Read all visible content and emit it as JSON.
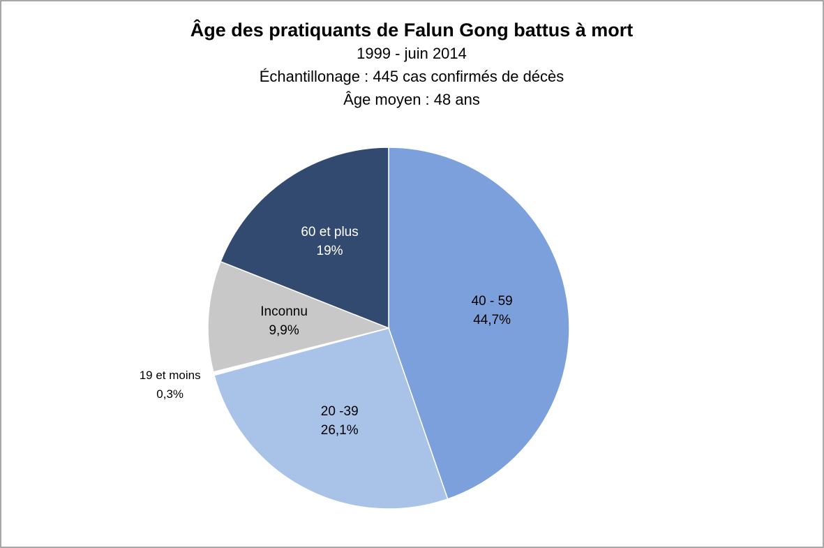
{
  "chart_data": {
    "type": "pie",
    "title": "Âge des pratiquants de Falun Gong battus à mort",
    "subtitle": [
      "1999 - juin 2014",
      "Échantillonage : 445 cas confirmés de décès",
      "Âge moyen : 48 ans"
    ],
    "categories": [
      "40 - 59",
      "20 -39",
      "19 et moins",
      "Inconnu",
      "60 et plus"
    ],
    "values": [
      44.7,
      26.1,
      0.3,
      9.9,
      19
    ],
    "value_labels": [
      "44,7%",
      "26,1%",
      "0,3%",
      "9,9%",
      "19%"
    ],
    "colors": [
      "#7ba0dc",
      "#a9c2e8",
      "#ffffff",
      "#c8c8c8",
      "#334a70"
    ]
  }
}
